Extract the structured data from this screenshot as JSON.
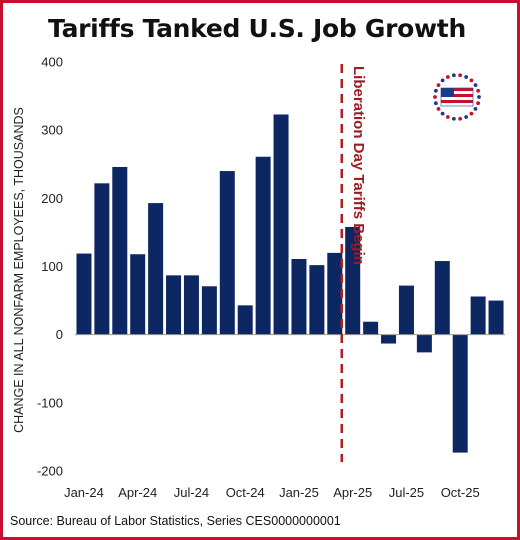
{
  "title": "Tariffs Tanked U.S. Job Growth",
  "source": "Source: Bureau of Labor Statistics, Series CES0000000001",
  "icon": "american-flag-seal-icon",
  "colors": {
    "bar": "#0d2763",
    "annotation": "#b71c1c",
    "border": "#c8102e"
  },
  "chart_data": {
    "type": "bar",
    "categories": [
      "Jan-24",
      "Feb-24",
      "Mar-24",
      "Apr-24",
      "May-24",
      "Jun-24",
      "Jul-24",
      "Aug-24",
      "Sep-24",
      "Oct-24",
      "Nov-24",
      "Dec-24",
      "Jan-25",
      "Feb-25",
      "Mar-25",
      "Apr-25",
      "May-25",
      "Jun-25",
      "Jul-25",
      "Aug-25",
      "Sep-25",
      "Oct-25",
      "Nov-25",
      "Dec-25"
    ],
    "values": [
      119,
      222,
      246,
      118,
      193,
      87,
      87,
      71,
      240,
      43,
      261,
      323,
      111,
      102,
      120,
      158,
      19,
      -13,
      72,
      -26,
      108,
      -173,
      56,
      50
    ],
    "xtick_labels": [
      "Jan-24",
      "Apr-24",
      "Jul-24",
      "Oct-24",
      "Jan-25",
      "Apr-25",
      "Jul-25",
      "Oct-25"
    ],
    "xtick_indices": [
      0,
      3,
      6,
      9,
      12,
      15,
      18,
      21
    ],
    "ylabel": "CHANGE IN ALL NONFARM EMPLOYEES, THOUSANDS",
    "ylim": [
      -200,
      400
    ],
    "yticks": [
      -200,
      -100,
      0,
      100,
      200,
      300,
      400
    ],
    "ytick_labels": [
      "-200",
      "-100",
      "0",
      "100",
      "200",
      "300",
      "400"
    ],
    "grid": false,
    "annotation": {
      "text": "Liberation Day Tariffs Begin",
      "between_index": 15
    }
  }
}
